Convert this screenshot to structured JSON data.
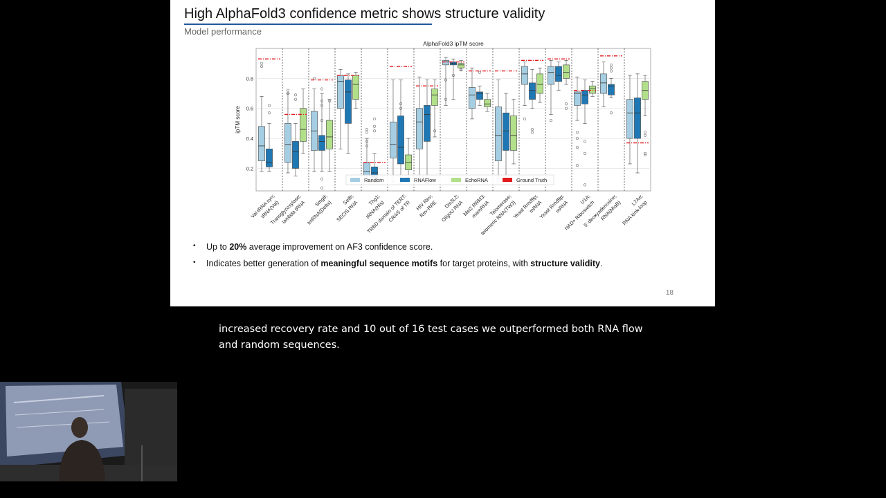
{
  "slide": {
    "title": "High AlphaFold3 confidence metric shows structure validity",
    "subtitle": "Model performance",
    "page_number": "18",
    "bullets": [
      {
        "parts": [
          {
            "text": "Up to ",
            "bold": false
          },
          {
            "text": "20%",
            "bold": true
          },
          {
            "text": " average improvement on AF3 confidence score.",
            "bold": false
          }
        ]
      },
      {
        "parts": [
          {
            "text": "Indicates better generation of ",
            "bold": false
          },
          {
            "text": "meaningful sequence motifs",
            "bold": true
          },
          {
            "text": " for target proteins, with ",
            "bold": false
          },
          {
            "text": "structure validity",
            "bold": true
          },
          {
            "text": ".",
            "bold": false
          }
        ]
      }
    ]
  },
  "caption": {
    "text": "increased recovery rate and 10 out of 16 test cases we outperformed both RNA flow and random sequences."
  },
  "chart_data": {
    "type": "box",
    "title": "AlphaFold3 ipTM score",
    "ylabel": "ipTM score",
    "ylim": [
      0.05,
      1.0
    ],
    "yticks": [
      0.2,
      0.4,
      0.6,
      0.8
    ],
    "grid": true,
    "legend_position": "bottom-center",
    "colors": {
      "Random": "#a6cee3",
      "RNAFlow": "#1f78b4",
      "EchoRNA": "#b2df8a",
      "Ground Truth": "#e31a1c"
    },
    "legend": [
      "Random",
      "RNAFlow",
      "EchoRNA",
      "Ground Truth"
    ],
    "categories": [
      "Val-tRNA syn;\ntRNA(Val)",
      "Transglycosylase;\nlambda tRNA",
      "Smg8;\ntmRNA(Delta)",
      "SelB;\nSECIS RNA",
      "Thg1;\ntRNA(His)",
      "TRBD domain of TERT;\nCR4/5 of TR",
      "HIV Rev;\nRev-RRE",
      "Dis3L2;\nOligoU RNA",
      "Mei2 RRM3;\nmamRNA",
      "Telomerase;\ntelomeric RNA(TWJ)",
      "Yeast Rrnd9p;\nmRNA",
      "Yeast Rrnd9p;\nmRNA",
      "U1A;\nNAD+ Riboswitch",
      "5'-deoxyadenosine;\nRNA(MiaB)",
      "L7Ae;\nRNA kink-loop"
    ],
    "ground_truth": [
      0.93,
      0.56,
      0.79,
      0.82,
      0.24,
      0.88,
      0.75,
      0.91,
      0.85,
      0.85,
      0.92,
      0.93,
      0.72,
      0.95,
      0.37
    ],
    "series": [
      {
        "name": "Random",
        "boxes": [
          {
            "min": 0.18,
            "q1": 0.25,
            "median": 0.35,
            "q3": 0.48,
            "max": 0.68,
            "outliers": [
              0.9,
              0.88
            ]
          },
          {
            "min": 0.17,
            "q1": 0.24,
            "median": 0.36,
            "q3": 0.5,
            "max": 0.7,
            "outliers": [
              0.72,
              0.7
            ]
          },
          {
            "min": 0.18,
            "q1": 0.32,
            "median": 0.45,
            "q3": 0.58,
            "max": 0.73,
            "outliers": [
              0.8
            ]
          },
          {
            "min": 0.33,
            "q1": 0.6,
            "median": 0.78,
            "q3": 0.82,
            "max": 0.86,
            "outliers": []
          },
          {
            "min": 0.12,
            "q1": 0.15,
            "median": 0.18,
            "q3": 0.24,
            "max": 0.4,
            "outliers": [
              0.44,
              0.46,
              0.38,
              0.35
            ]
          },
          {
            "min": 0.11,
            "q1": 0.27,
            "median": 0.36,
            "q3": 0.51,
            "max": 0.79,
            "outliers": []
          },
          {
            "min": 0.12,
            "q1": 0.33,
            "median": 0.51,
            "q3": 0.6,
            "max": 0.81,
            "outliers": []
          },
          {
            "min": 0.62,
            "q1": 0.89,
            "median": 0.91,
            "q3": 0.92,
            "max": 0.94,
            "outliers": [
              0.79,
              0.66
            ]
          },
          {
            "min": 0.53,
            "q1": 0.6,
            "median": 0.69,
            "q3": 0.74,
            "max": 0.87,
            "outliers": []
          },
          {
            "min": 0.13,
            "q1": 0.25,
            "median": 0.42,
            "q3": 0.61,
            "max": 0.79,
            "outliers": []
          },
          {
            "min": 0.62,
            "q1": 0.76,
            "median": 0.83,
            "q3": 0.88,
            "max": 0.91,
            "outliers": [
              0.53
            ]
          },
          {
            "min": 0.56,
            "q1": 0.76,
            "median": 0.84,
            "q3": 0.88,
            "max": 0.92,
            "outliers": [
              0.52
            ]
          },
          {
            "min": 0.52,
            "q1": 0.62,
            "median": 0.7,
            "q3": 0.71,
            "max": 0.81,
            "outliers": [
              0.44,
              0.4,
              0.34,
              0.22
            ]
          },
          {
            "min": 0.61,
            "q1": 0.7,
            "median": 0.77,
            "q3": 0.83,
            "max": 0.91,
            "outliers": []
          },
          {
            "min": 0.23,
            "q1": 0.4,
            "median": 0.57,
            "q3": 0.66,
            "max": 0.82,
            "outliers": []
          }
        ]
      },
      {
        "name": "RNAFlow",
        "boxes": [
          {
            "min": 0.18,
            "q1": 0.21,
            "median": 0.24,
            "q3": 0.33,
            "max": 0.5,
            "outliers": [
              0.62,
              0.57
            ]
          },
          {
            "min": 0.15,
            "q1": 0.2,
            "median": 0.31,
            "q3": 0.38,
            "max": 0.5,
            "outliers": [
              0.69,
              0.66
            ]
          },
          {
            "min": 0.18,
            "q1": 0.32,
            "median": 0.38,
            "q3": 0.42,
            "max": 0.7,
            "outliers": [
              0.73,
              0.65,
              0.62,
              0.52,
              0.13,
              0.07
            ]
          },
          {
            "min": 0.3,
            "q1": 0.5,
            "median": 0.71,
            "q3": 0.79,
            "max": 0.83,
            "outliers": []
          },
          {
            "min": 0.11,
            "q1": 0.14,
            "median": 0.17,
            "q3": 0.21,
            "max": 0.3,
            "outliers": [
              0.53,
              0.48,
              0.45
            ]
          },
          {
            "min": 0.1,
            "q1": 0.23,
            "median": 0.34,
            "q3": 0.55,
            "max": 0.79,
            "outliers": [
              0.63,
              0.6
            ]
          },
          {
            "min": 0.1,
            "q1": 0.38,
            "median": 0.56,
            "q3": 0.62,
            "max": 0.79,
            "outliers": []
          },
          {
            "min": 0.66,
            "q1": 0.89,
            "median": 0.9,
            "q3": 0.91,
            "max": 0.93,
            "outliers": [
              0.82
            ]
          },
          {
            "min": 0.62,
            "q1": 0.66,
            "median": 0.7,
            "q3": 0.71,
            "max": 0.75,
            "outliers": [
              0.84
            ]
          },
          {
            "min": 0.12,
            "q1": 0.32,
            "median": 0.45,
            "q3": 0.57,
            "max": 0.7,
            "outliers": []
          },
          {
            "min": 0.6,
            "q1": 0.66,
            "median": 0.72,
            "q3": 0.77,
            "max": 0.86,
            "outliers": [
              0.46,
              0.44
            ]
          },
          {
            "min": 0.72,
            "q1": 0.78,
            "median": 0.82,
            "q3": 0.88,
            "max": 0.91,
            "outliers": []
          },
          {
            "min": 0.5,
            "q1": 0.63,
            "median": 0.69,
            "q3": 0.72,
            "max": 0.79,
            "outliers": [
              0.38,
              0.3,
              0.09
            ]
          },
          {
            "min": 0.67,
            "q1": 0.69,
            "median": 0.75,
            "q3": 0.76,
            "max": 0.8,
            "outliers": [
              0.89,
              0.87,
              0.85,
              0.57
            ]
          },
          {
            "min": 0.17,
            "q1": 0.4,
            "median": 0.57,
            "q3": 0.67,
            "max": 0.83,
            "outliers": []
          }
        ]
      },
      {
        "name": "EchoRNA",
        "boxes": [
          {
            "min": null,
            "q1": null,
            "median": null,
            "q3": null,
            "max": null,
            "outliers": []
          },
          {
            "min": 0.3,
            "q1": 0.38,
            "median": 0.46,
            "q3": 0.6,
            "max": 0.73,
            "outliers": []
          },
          {
            "min": 0.18,
            "q1": 0.33,
            "median": 0.41,
            "q3": 0.52,
            "max": 0.66,
            "outliers": [
              0.65
            ]
          },
          {
            "min": 0.6,
            "q1": 0.66,
            "median": 0.76,
            "q3": 0.82,
            "max": 0.84,
            "outliers": []
          },
          {
            "min": null,
            "q1": null,
            "median": null,
            "q3": null,
            "max": null,
            "outliers": []
          },
          {
            "min": 0.14,
            "q1": 0.19,
            "median": 0.24,
            "q3": 0.29,
            "max": 0.4,
            "outliers": []
          },
          {
            "min": 0.41,
            "q1": 0.62,
            "median": 0.69,
            "q3": 0.73,
            "max": 0.79,
            "outliers": [
              0.45
            ]
          },
          {
            "min": 0.85,
            "q1": 0.87,
            "median": 0.89,
            "q3": 0.9,
            "max": 0.92,
            "outliers": [
              0.86
            ]
          },
          {
            "min": 0.58,
            "q1": 0.61,
            "median": 0.63,
            "q3": 0.66,
            "max": 0.7,
            "outliers": []
          },
          {
            "min": 0.23,
            "q1": 0.32,
            "median": 0.42,
            "q3": 0.55,
            "max": 0.66,
            "outliers": []
          },
          {
            "min": 0.64,
            "q1": 0.7,
            "median": 0.76,
            "q3": 0.83,
            "max": 0.87,
            "outliers": []
          },
          {
            "min": 0.76,
            "q1": 0.8,
            "median": 0.84,
            "q3": 0.89,
            "max": 0.92,
            "outliers": [
              0.63,
              0.6
            ]
          },
          {
            "min": 0.68,
            "q1": 0.7,
            "median": 0.73,
            "q3": 0.75,
            "max": 0.78,
            "outliers": []
          },
          {
            "min": null,
            "q1": null,
            "median": null,
            "q3": null,
            "max": null,
            "outliers": []
          },
          {
            "min": 0.55,
            "q1": 0.66,
            "median": 0.72,
            "q3": 0.78,
            "max": 0.82,
            "outliers": [
              0.44,
              0.42,
              0.3,
              0.29
            ]
          }
        ]
      }
    ]
  }
}
